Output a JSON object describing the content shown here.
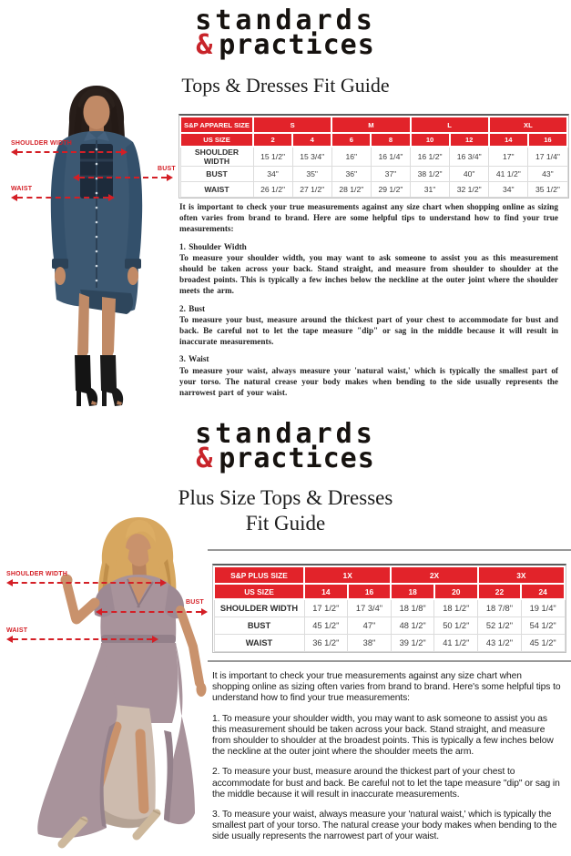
{
  "page": {
    "accent_red": "#e2232a",
    "annotation_red": "#d41f26",
    "background": "#ffffff"
  },
  "brand": {
    "line1": "standards",
    "amp": "&",
    "line2": "practices"
  },
  "section1": {
    "title": "Tops & Dresses Fit Guide",
    "annotations": {
      "shoulder": "SHOULDER WIDTH",
      "bust": "BUST",
      "waist": "WAIST"
    },
    "table": {
      "corner_label": "S&P APPAREL SIZE",
      "us_size_label": "US SIZE",
      "size_groups": [
        "S",
        "M",
        "L",
        "XL"
      ],
      "us_sizes": [
        "2",
        "4",
        "6",
        "8",
        "10",
        "12",
        "14",
        "16"
      ],
      "rows": [
        {
          "label": "SHOULDER WIDTH",
          "values": [
            "15 1/2\"",
            "15 3/4\"",
            "16\"",
            "16 1/4\"",
            "16 1/2\"",
            "16 3/4\"",
            "17\"",
            "17 1/4\""
          ]
        },
        {
          "label": "BUST",
          "values": [
            "34\"",
            "35\"",
            "36\"",
            "37\"",
            "38 1/2\"",
            "40\"",
            "41 1/2\"",
            "43\""
          ]
        },
        {
          "label": "WAIST",
          "values": [
            "26 1/2\"",
            "27 1/2\"",
            "28 1/2\"",
            "29 1/2\"",
            "31\"",
            "32 1/2\"",
            "34\"",
            "35 1/2\""
          ]
        }
      ]
    },
    "intro": "It is important to check your true measurements against any size chart when shopping online as sizing often varies from brand to brand. Here are some helpful tips to understand how to find your true measurements:",
    "tips": [
      {
        "heading": "1. Shoulder Width",
        "body": "To measure your shoulder width, you may want to ask someone to assist you as this measurement should be taken across your back. Stand straight, and measure from shoulder to shoulder at the broadest points. This is typically a few inches below the neckline at the outer joint where the shoulder meets the arm."
      },
      {
        "heading": "2. Bust",
        "body": "To measure your bust, measure around the thickest part of your chest to accommodate for bust and back. Be careful not to let the tape measure \"dip\" or sag in the middle because it will result in inaccurate measurements."
      },
      {
        "heading": "3. Waist",
        "body": "To measure your waist, always measure your 'natural waist,' which is typically the smallest part of your torso.  The natural crease your body makes when bending to the side usually represents the narrowest part of your waist."
      }
    ]
  },
  "section2": {
    "title_line1": "Plus Size Tops & Dresses",
    "title_line2": "Fit Guide",
    "annotations": {
      "shoulder": "SHOULDER WIDTH",
      "bust": "BUST",
      "waist": "WAIST"
    },
    "table": {
      "corner_label": "S&P PLUS SIZE",
      "us_size_label": "US SIZE",
      "size_groups": [
        "1X",
        "2X",
        "3X"
      ],
      "us_sizes": [
        "14",
        "16",
        "18",
        "20",
        "22",
        "24"
      ],
      "rows": [
        {
          "label": "SHOULDER WIDTH",
          "values": [
            "17 1/2\"",
            "17 3/4\"",
            "18 1/8\"",
            "18 1/2\"",
            "18 7/8\"",
            "19 1/4\""
          ]
        },
        {
          "label": "BUST",
          "values": [
            "45 1/2\"",
            "47\"",
            "48 1/2\"",
            "50 1/2\"",
            "52 1/2\"",
            "54 1/2\""
          ]
        },
        {
          "label": "WAIST",
          "values": [
            "36 1/2\"",
            "38\"",
            "39 1/2\"",
            "41 1/2\"",
            "43 1/2\"",
            "45 1/2\""
          ]
        }
      ]
    },
    "intro": "It is important to check your true measurements against any size chart when shopping online as sizing often varies from brand to brand. Here's some helpful tips to understand how to find your true measurements:",
    "tips": [
      "1. To measure your shoulder width, you may want to ask someone to assist you as this measurement should be taken across your back. Stand straight, and measure from shoulder to shoulder at the broadest points. This is typically a few inches below the neckline at the outer joint where the shoulder meets the arm.",
      "2. To measure your bust, measure around the thickest part of your chest to accommodate for bust and back. Be careful not to let the tape measure \"dip\" or sag in the middle because it will result in inaccurate measurements.",
      "3. To measure your waist, always measure your  'natural waist,'  which is typically the smallest part of your torso.  The natural crease your body makes when bending to the side usually represents the narrowest part of your waist."
    ]
  }
}
